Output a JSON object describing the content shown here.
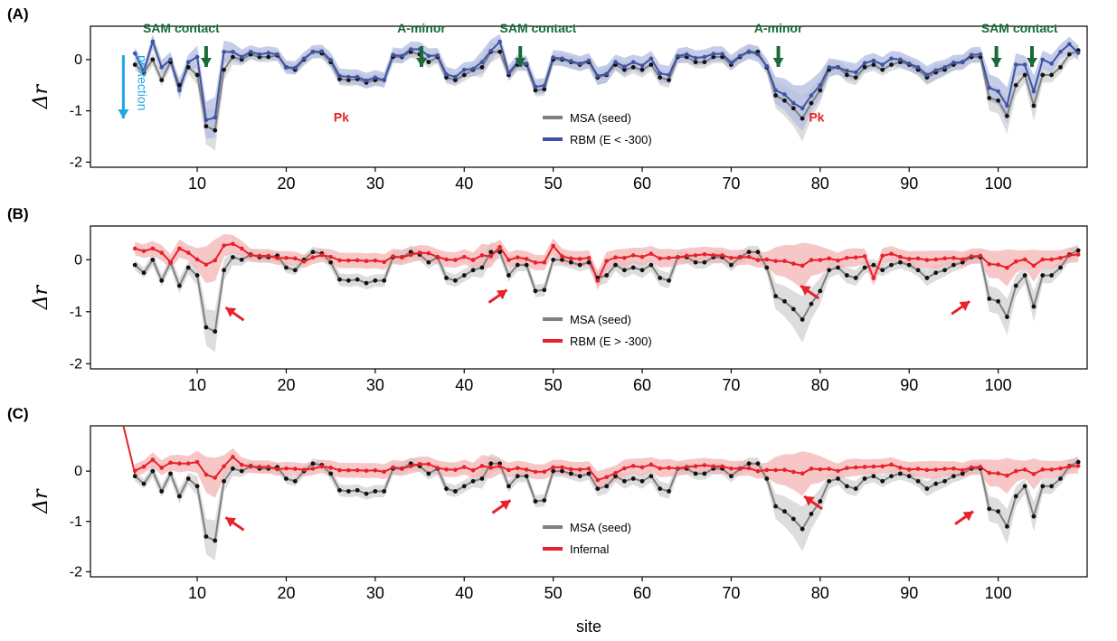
{
  "figure": {
    "xlabel": "site",
    "ylabel": "Δr"
  },
  "colors": {
    "msa": "#808080",
    "msa_band": "#d9d9d9",
    "rbm_low": "#3e54a3",
    "rbm_low_band": "#b3bce0",
    "red": "#e8212a",
    "red_band": "#f4b4b4",
    "green": "#1a6b38",
    "cyan": "#1fa7e1"
  },
  "chart_data": [
    {
      "panel_label": "(A)",
      "type": "line",
      "xlabel": "",
      "ylabel": "Δr",
      "xlim": [
        -2,
        110
      ],
      "ylim": [
        -2.1,
        0.65
      ],
      "xticks": [
        10,
        20,
        30,
        40,
        50,
        60,
        70,
        80,
        90,
        100
      ],
      "yticks": [
        -2,
        -1,
        0
      ],
      "ytick_labels": [
        "-2",
        "-1",
        "0"
      ],
      "legend": [
        "MSA (seed)",
        "RBM (E < -300)"
      ],
      "legend_placement": "center-bottom",
      "series": [
        {
          "name": "MSA (seed)",
          "role": "msa",
          "offsets": [
            0
          ]
        },
        {
          "name": "RBM (E < -300)",
          "role": "model",
          "style": "blue",
          "offsets": [
            0.22,
            0.02,
            0.35,
            0.25,
            0.05,
            -0.1,
            0.1,
            0.35,
            0.12,
            0.25,
            0.35,
            0.1,
            0.05,
            0.05,
            0.05,
            0.08,
            0.02,
            0,
            0.04,
            0.02,
            0,
            0.04,
            0.04,
            0.06,
            0.06,
            0.04,
            0.04,
            0.05,
            0,
            0.04,
            0.02,
            0.05,
            0.1,
            0.12,
            0.03,
            0.06,
            0.06,
            0.1,
            0.02,
            0.1,
            0.02,
            0.2,
            0.04,
            0.05,
            0.02,
            0.07,
            0.07,
            0.04,
            0.02,
            0.02,
            0.02,
            0.03,
            0.03,
            0.02,
            0.05,
            0.06,
            0.1,
            0.08,
            0.12,
            0.08,
            0.1,
            0.02,
            0.05,
            0.08,
            0.1,
            0.06,
            0.06,
            0.04,
            0.02,
            0.01,
            -0.05,
            0.02,
            0.1,
            0.12,
            0.1,
            0.2,
            0.15,
            0.1,
            0.05,
            0,
            0.08,
            0.1,
            0.08,
            0.08,
            0.1,
            0.12,
            0.05,
            0.02,
            0.05,
            0.05,
            0.04,
            0.05,
            0.04,
            0,
            0.04,
            0.05,
            0.2,
            0.18,
            0.2,
            0.4,
            0.2,
            0.28,
            0.3,
            0.22,
            0.3,
            0.2,
            -0.05
          ]
        }
      ],
      "annotations": {
        "green": [
          {
            "text": "SAM contact",
            "x": 11,
            "text_x": 8.2,
            "text_y": 0.6
          },
          {
            "text": "A-minor",
            "x": 35.2,
            "text_x": 35.2,
            "text_y": 0.6
          },
          {
            "text": "SAM contact",
            "x": 46.3,
            "text_x": 48.3,
            "text_y": 0.6
          },
          {
            "text": "A-minor",
            "x": 75.3,
            "text_x": 75.3,
            "text_y": 0.6
          },
          {
            "text": "SAM contact",
            "x": 99.8,
            "text_x": 102.4,
            "text_y": 0.6
          },
          {
            "x": 103.8
          }
        ],
        "red_text": [
          {
            "text": "Pk",
            "x": 26.2,
            "y": -1.12
          },
          {
            "text": "Pk",
            "x": 79.6,
            "y": -1.12
          }
        ],
        "protection": {
          "text": "protection",
          "x": 1.7
        }
      }
    },
    {
      "panel_label": "(B)",
      "type": "line",
      "xlabel": "",
      "ylabel": "Δr",
      "xlim": [
        -2,
        110
      ],
      "ylim": [
        -2.1,
        0.65
      ],
      "xticks": [
        10,
        20,
        30,
        40,
        50,
        60,
        70,
        80,
        90,
        100
      ],
      "yticks": [
        -2,
        -1,
        0
      ],
      "ytick_labels": [
        "-2",
        "-1",
        "0"
      ],
      "legend": [
        "MSA (seed)",
        "RBM (E > -300)"
      ],
      "legend_placement": "center-bottom",
      "series": [
        {
          "name": "MSA (seed)",
          "role": "msa",
          "offsets": [
            0
          ]
        },
        {
          "name": "RBM (E > -300)",
          "role": "model",
          "style": "red",
          "flatten": 0.8,
          "const": 0.02,
          "offsets": [
            0.22,
            0.2,
            0.2,
            0.2,
            -0.05,
            0.3,
            0.15,
            0.05,
            0.15,
            0.25,
            0.3,
            0.28,
            0.2,
            0.05,
            0.05,
            0.05,
            0,
            0.05,
            0.05,
            -0.05,
            0,
            0.05,
            0.05,
            0.05,
            0.05,
            0.05,
            0.05,
            0.05,
            0.02,
            0.04,
            0.02,
            0.05,
            0.1,
            0.12,
            0.03,
            0.06,
            0.06,
            0.1,
            0.02,
            0.1,
            0.02,
            0.2,
            0.04,
            0.05,
            0.02,
            0.05,
            0.05,
            0.25,
            0.05,
            0.02,
            0.02,
            0.03,
            -0.35,
            0.02,
            0.05,
            0.06,
            0.1,
            0.08,
            0.12,
            0.08,
            0.1,
            0.02,
            0.05,
            0.08,
            0.1,
            0.06,
            0.06,
            0.04,
            0.02,
            0.01,
            -0.05,
            0.02,
            0.1,
            0.12,
            0.1,
            0.1,
            0.15,
            0.1,
            0.05,
            0,
            0.08,
            0.1,
            0.08,
            -0.35,
            0.1,
            0.12,
            0.05,
            0.02,
            0.05,
            0.05,
            0.04,
            0.05,
            0.04,
            0,
            0.04,
            0.05,
            0.05,
            0.05,
            0.05,
            0.05,
            0.05,
            0.05,
            0.05,
            0.05,
            0.05,
            0.05,
            0.05
          ]
        }
      ],
      "annotations": {
        "arrows": [
          {
            "x": 13.2,
            "y": -0.92
          },
          {
            "x": 44.8,
            "y": -0.58
          },
          {
            "x": 77.8,
            "y": -0.5
          },
          {
            "x": 96.8,
            "y": -0.8
          }
        ]
      }
    },
    {
      "panel_label": "(C)",
      "type": "line",
      "xlabel": "site",
      "ylabel": "Δr",
      "xlim": [
        -2,
        110
      ],
      "ylim": [
        -2.1,
        0.9
      ],
      "xticks": [
        10,
        20,
        30,
        40,
        50,
        60,
        70,
        80,
        90,
        100
      ],
      "yticks": [
        -2,
        -1,
        0
      ],
      "ytick_labels": [
        "-2",
        "-1",
        "0"
      ],
      "legend": [
        "MSA (seed)",
        "Infernal"
      ],
      "legend_placement": "center-bottom",
      "series": [
        {
          "name": "MSA (seed)",
          "role": "msa",
          "offsets": [
            0
          ]
        },
        {
          "name": "Infernal",
          "role": "model",
          "style": "red",
          "flatten": 0.85,
          "const": 0.03,
          "offsets": [
            0,
            0.1,
            0.2,
            0.1,
            0.15,
            0.2,
            0.15,
            0.2,
            0.1,
            0.05,
            0.1,
            0.25,
            0.1,
            0.05,
            0.05,
            0.05,
            0,
            0.05,
            0.05,
            0,
            0,
            0.05,
            0.05,
            0.05,
            0.05,
            0.05,
            0.05,
            0.05,
            0.02,
            0.04,
            0.02,
            0.05,
            0.1,
            0.12,
            0.03,
            0.06,
            0.06,
            0.1,
            0.02,
            0.1,
            0.02,
            0.05,
            0.04,
            0.05,
            0.02,
            0.05,
            0.05,
            0.05,
            0.05,
            0.02,
            0.02,
            0.03,
            -0.15,
            -0.1,
            -0.05,
            0.06,
            0.1,
            0.08,
            0.12,
            0.08,
            0.1,
            0.02,
            0.05,
            0.08,
            0.1,
            0.06,
            0.06,
            0.04,
            0.02,
            0.01,
            -0.05,
            0.02,
            0.1,
            0.12,
            0.1,
            0.1,
            0.15,
            0.1,
            0.05,
            0,
            0.08,
            0.1,
            0.08,
            0.08,
            0.1,
            0.12,
            0.05,
            0.02,
            0.05,
            0.05,
            0.04,
            0.05,
            0.04,
            0,
            0.04,
            0.05,
            0.05,
            0.05,
            0.05,
            0.05,
            0.05,
            0.05,
            0.05,
            0.05,
            0.05,
            0.05,
            0.05
          ]
        }
      ],
      "annotations": {
        "arrows": [
          {
            "x": 13.2,
            "y": -0.92
          },
          {
            "x": 45.2,
            "y": -0.58
          },
          {
            "x": 78.2,
            "y": -0.5
          },
          {
            "x": 97.2,
            "y": -0.8
          }
        ],
        "spike": [
          {
            "x": 1.7,
            "y": 0.9
          },
          {
            "x": 3,
            "y": -0.05
          }
        ]
      }
    }
  ],
  "msa_seed": {
    "x_start": 3,
    "y": [
      -0.1,
      -0.25,
      0,
      -0.4,
      -0.05,
      -0.5,
      -0.15,
      -0.3,
      -1.3,
      -1.38,
      -0.2,
      0.05,
      0,
      0.1,
      0.05,
      0.05,
      0.08,
      -0.15,
      -0.2,
      0,
      0.15,
      0.12,
      -0.05,
      -0.38,
      -0.4,
      -0.38,
      -0.45,
      -0.4,
      -0.4,
      0.05,
      0.05,
      0.15,
      0.1,
      -0.05,
      0.05,
      -0.35,
      -0.4,
      -0.3,
      -0.2,
      -0.15,
      0.15,
      0.15,
      -0.3,
      -0.1,
      -0.1,
      -0.6,
      -0.58,
      0,
      0,
      -0.05,
      -0.1,
      -0.05,
      -0.35,
      -0.3,
      -0.1,
      -0.2,
      -0.15,
      -0.2,
      -0.1,
      -0.35,
      -0.4,
      0.05,
      0.05,
      -0.05,
      -0.05,
      0.05,
      0.05,
      -0.1,
      0.05,
      0.15,
      0.15,
      -0.15,
      -0.7,
      -0.8,
      -0.95,
      -1.15,
      -0.85,
      -0.6,
      -0.2,
      -0.15,
      -0.3,
      -0.35,
      -0.15,
      -0.1,
      -0.2,
      -0.1,
      -0.05,
      -0.1,
      -0.2,
      -0.35,
      -0.25,
      -0.2,
      -0.1,
      -0.05,
      0.05,
      0.05,
      -0.75,
      -0.8,
      -1.1,
      -0.5,
      -0.3,
      -0.9,
      -0.3,
      -0.3,
      -0.15,
      0.1,
      0.18
    ],
    "band": [
      0.1,
      0.1,
      0.12,
      0.12,
      0.12,
      0.15,
      0.12,
      0.2,
      0.35,
      0.4,
      0.2,
      0.15,
      0.12,
      0.1,
      0.1,
      0.1,
      0.1,
      0.1,
      0.1,
      0.1,
      0.1,
      0.1,
      0.12,
      0.12,
      0.12,
      0.12,
      0.12,
      0.12,
      0.12,
      0.12,
      0.12,
      0.12,
      0.12,
      0.12,
      0.12,
      0.12,
      0.12,
      0.12,
      0.12,
      0.2,
      0.2,
      0.12,
      0.12,
      0.12,
      0.12,
      0.12,
      0.12,
      0.12,
      0.12,
      0.12,
      0.12,
      0.12,
      0.15,
      0.15,
      0.12,
      0.15,
      0.12,
      0.15,
      0.12,
      0.15,
      0.15,
      0.12,
      0.12,
      0.12,
      0.12,
      0.12,
      0.12,
      0.12,
      0.12,
      0.12,
      0.12,
      0.12,
      0.25,
      0.3,
      0.35,
      0.45,
      0.3,
      0.25,
      0.15,
      0.12,
      0.15,
      0.15,
      0.12,
      0.12,
      0.12,
      0.12,
      0.12,
      0.12,
      0.12,
      0.15,
      0.15,
      0.12,
      0.12,
      0.12,
      0.12,
      0.12,
      0.25,
      0.25,
      0.35,
      0.2,
      0.15,
      0.3,
      0.15,
      0.15,
      0.12,
      0.12,
      0.12
    ]
  }
}
